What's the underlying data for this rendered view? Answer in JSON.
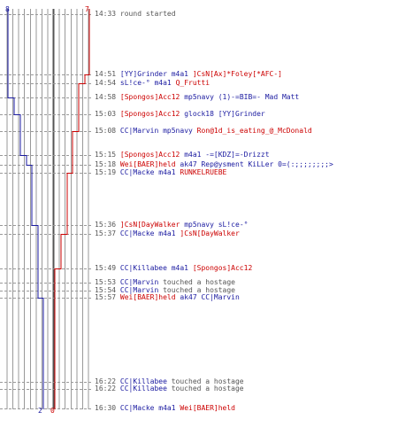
{
  "colors": {
    "ct": "#1a1aa0",
    "t": "#cc0000",
    "neutral": "#555555",
    "grid": "#999999"
  },
  "scores": {
    "ct_start": "8",
    "t_start": "7",
    "ct_end": "2",
    "t_end": "0"
  },
  "events": [
    {
      "time": "14:33",
      "type": "sys",
      "msg": "round started"
    },
    {
      "time": "14:51",
      "type": "kill",
      "killer": "[YY]Grinder",
      "kteam": "blue",
      "weapon": "m4a1",
      "victim": "]CsN[Ax]*Foley[*AFC-]",
      "vteam": "red"
    },
    {
      "time": "14:54",
      "type": "kill",
      "killer": "sL!ce-°",
      "kteam": "blue",
      "weapon": "m4a1",
      "victim": "Q_Frutti",
      "vteam": "red"
    },
    {
      "time": "14:58",
      "type": "kill",
      "killer": "[Spongos]Acc12",
      "kteam": "red",
      "weapon": "mp5navy",
      "victim": "(1)-=BIB=- Mad Matt",
      "vteam": "blue"
    },
    {
      "time": "15:03",
      "type": "kill",
      "killer": "[Spongos]Acc12",
      "kteam": "red",
      "weapon": "glock18",
      "victim": "[YY]Grinder",
      "vteam": "blue"
    },
    {
      "time": "15:08",
      "type": "kill",
      "killer": "CC|Marvin",
      "kteam": "blue",
      "weapon": "mp5navy",
      "victim": "Ron@1d_is_eating_@_McDonald",
      "vteam": "red"
    },
    {
      "time": "15:15",
      "type": "kill",
      "killer": "[Spongos]Acc12",
      "kteam": "red",
      "weapon": "m4a1",
      "victim": "-=[KDZ]=-Drizzt",
      "vteam": "blue"
    },
    {
      "time": "15:18",
      "type": "kill",
      "killer": "Wei[BAER]held",
      "kteam": "red",
      "weapon": "ak47",
      "victim": "Rep@ysment KiLLer 0=(:;;;;;;;;>",
      "vteam": "blue"
    },
    {
      "time": "15:19",
      "type": "kill",
      "killer": "CC|Macke",
      "kteam": "blue",
      "weapon": "m4a1",
      "victim": "RUNKELRUEBE",
      "vteam": "red"
    },
    {
      "time": "15:36",
      "type": "kill",
      "killer": "]CsN[DayWalker",
      "kteam": "red",
      "weapon": "mp5navy",
      "victim": "sL!ce-°",
      "vteam": "blue"
    },
    {
      "time": "15:37",
      "type": "kill",
      "killer": "CC|Macke",
      "kteam": "blue",
      "weapon": "m4a1",
      "victim": "]CsN[DayWalker",
      "vteam": "red"
    },
    {
      "time": "15:49",
      "type": "kill",
      "killer": "CC|Killabee",
      "kteam": "blue",
      "weapon": "m4a1",
      "victim": "[Spongos]Acc12",
      "vteam": "red"
    },
    {
      "time": "15:53",
      "type": "action",
      "actor": "CC|Marvin",
      "ateam": "blue",
      "msg": "touched a hostage"
    },
    {
      "time": "15:54",
      "type": "action",
      "actor": "CC|Marvin",
      "ateam": "blue",
      "msg": "touched a hostage"
    },
    {
      "time": "15:57",
      "type": "kill",
      "killer": "Wei[BAER]held",
      "kteam": "red",
      "weapon": "ak47",
      "victim": "CC|Marvin",
      "vteam": "blue"
    },
    {
      "time": "16:22",
      "type": "action",
      "actor": "CC|Killabee",
      "ateam": "blue",
      "msg": "touched a hostage"
    },
    {
      "time": "16:22",
      "type": "action",
      "actor": "CC|Killabee",
      "ateam": "blue",
      "msg": "touched a hostage"
    },
    {
      "time": "16:30",
      "type": "kill",
      "killer": "CC|Macke",
      "kteam": "blue",
      "weapon": "m4a1",
      "victim": "Wei[BAER]held",
      "vteam": "red"
    }
  ]
}
